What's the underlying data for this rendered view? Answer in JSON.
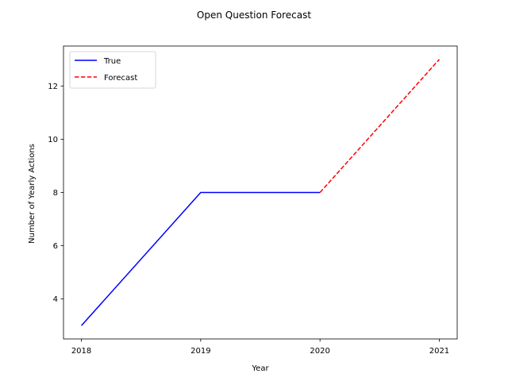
{
  "chart_data": {
    "type": "line",
    "title": "Open Question Forecast",
    "xlabel": "Year",
    "ylabel": "Number of Yearly Actions",
    "xlim": [
      2017.85,
      2021.15
    ],
    "ylim": [
      2.5,
      13.5
    ],
    "x_ticks": [
      2018,
      2019,
      2020,
      2021
    ],
    "y_ticks": [
      4,
      6,
      8,
      10,
      12
    ],
    "grid": false,
    "legend_position": "top-left",
    "series": [
      {
        "name": "True",
        "color": "#0000ff",
        "style": "solid",
        "x": [
          2018,
          2019,
          2020
        ],
        "y": [
          3,
          8,
          8
        ]
      },
      {
        "name": "Forecast",
        "color": "#ff0000",
        "style": "dashed",
        "x": [
          2020,
          2021
        ],
        "y": [
          8,
          13
        ]
      }
    ]
  }
}
